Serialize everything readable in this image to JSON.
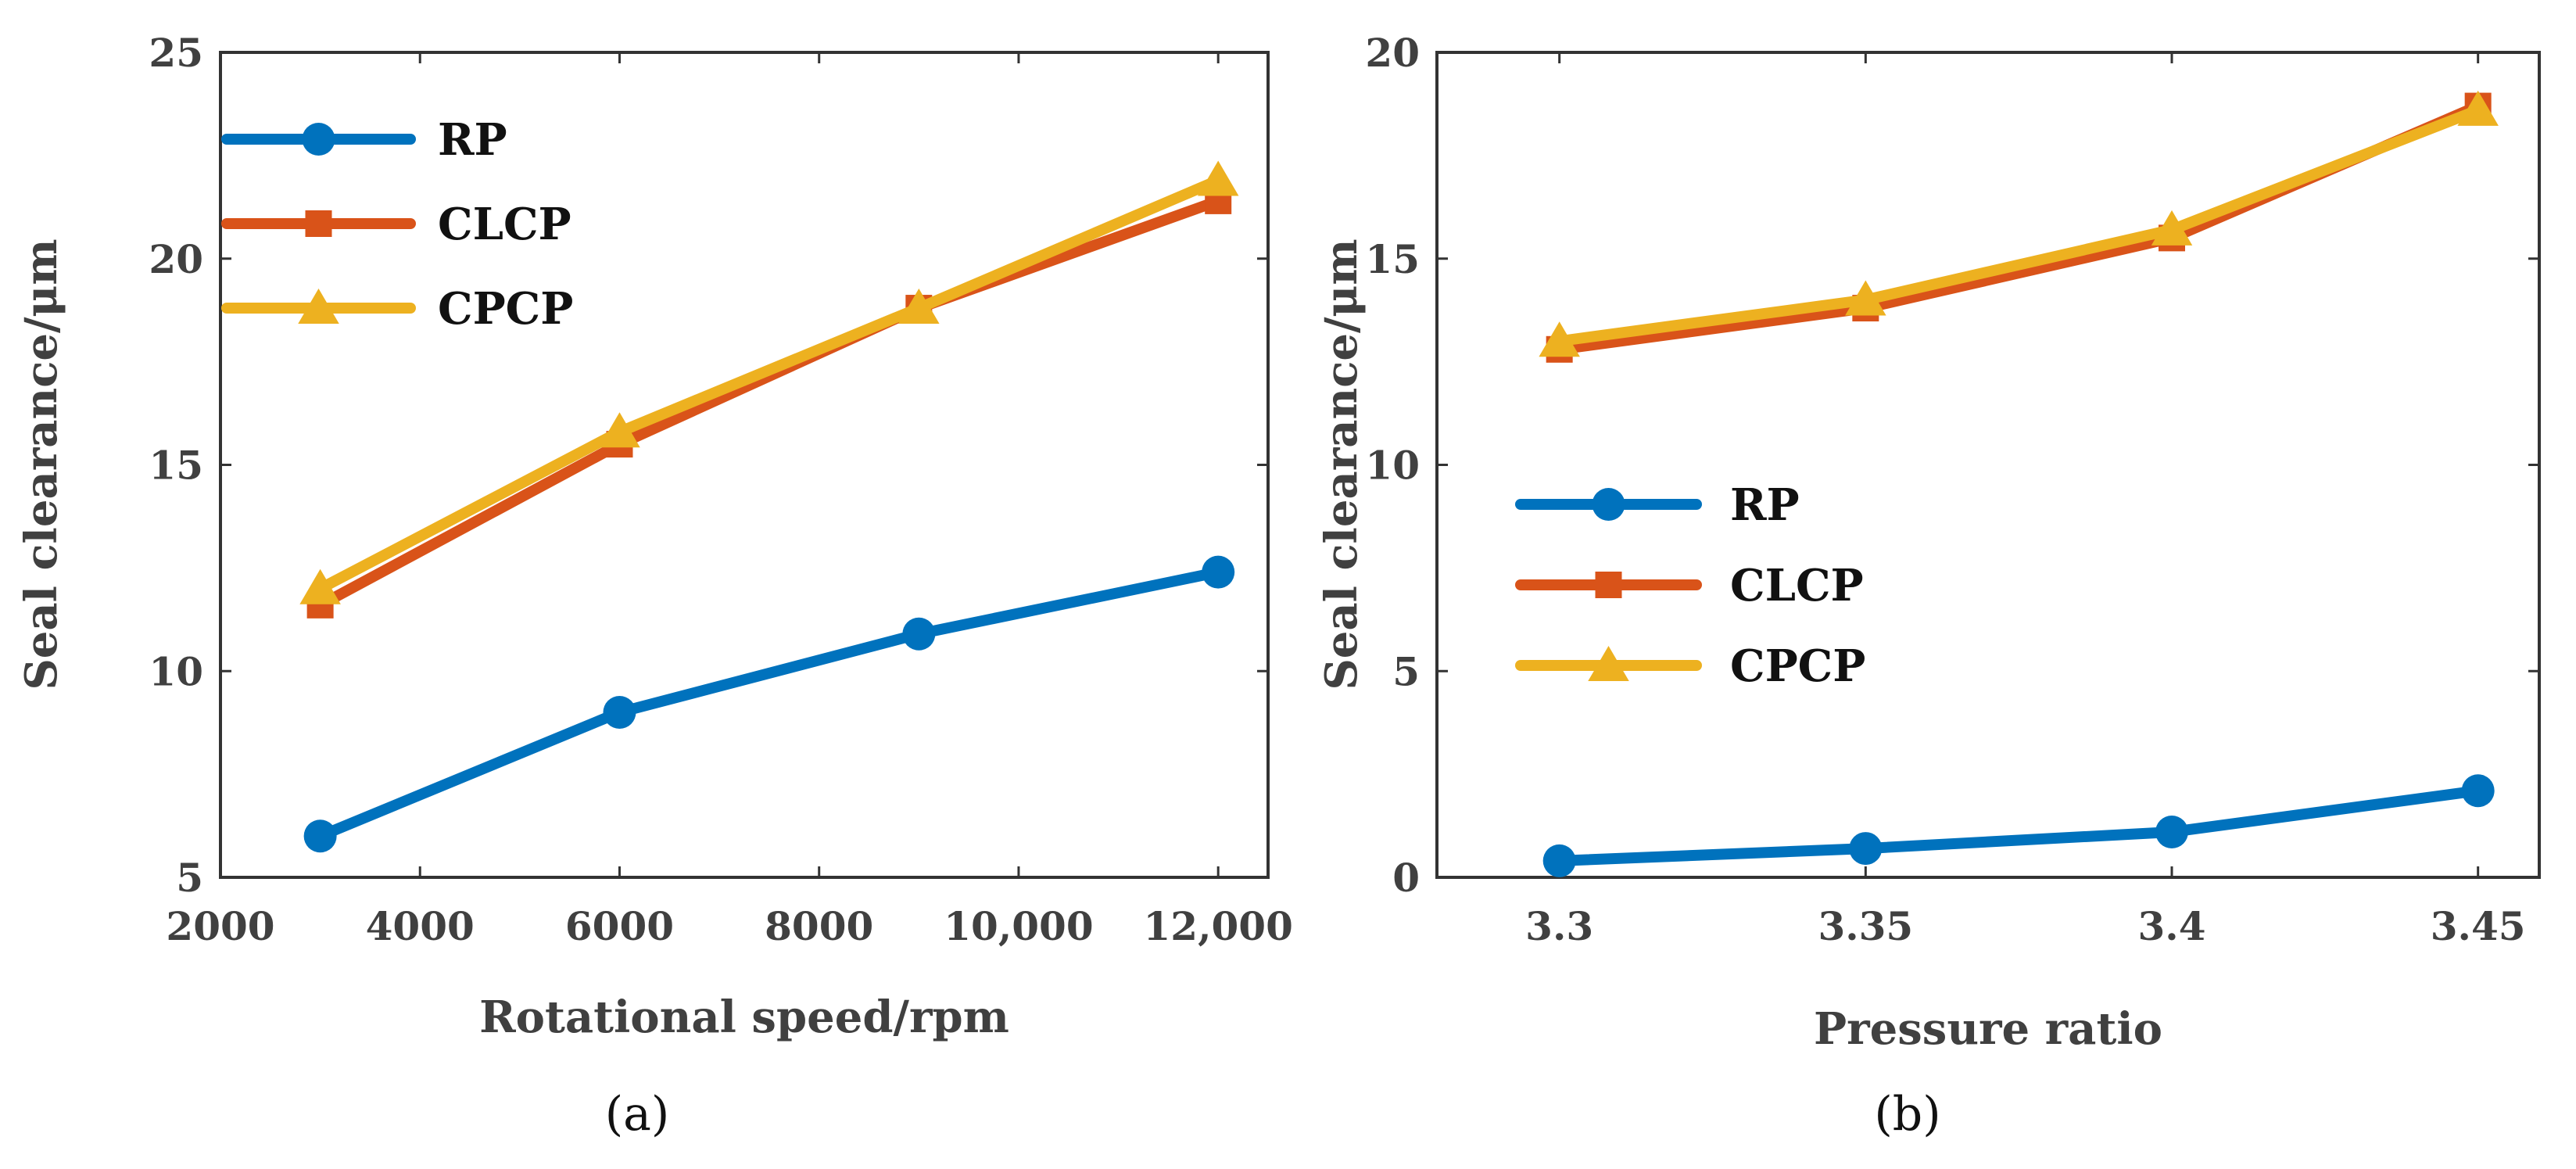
{
  "chart_data": [
    {
      "type": "line",
      "caption": "(a)",
      "xlabel": "Rotational speed/rpm",
      "ylabel": "Seal clearance/μm",
      "xlim": [
        2000,
        12500
      ],
      "ylim": [
        5,
        25
      ],
      "xticks": [
        2000,
        4000,
        6000,
        8000,
        10000,
        12000
      ],
      "xtick_labels": [
        "2000",
        "4000",
        "6000",
        "8000",
        "10,000",
        "12,000"
      ],
      "yticks": [
        5,
        10,
        15,
        20,
        25
      ],
      "ytick_labels": [
        "5",
        "10",
        "15",
        "20",
        "25"
      ],
      "grid": false,
      "legend_position": "top-left",
      "x": [
        3000,
        6000,
        9000,
        12000
      ],
      "series": [
        {
          "name": "RP",
          "color": "#0072BD",
          "marker": "circle",
          "values": [
            6.0,
            9.0,
            10.9,
            12.4
          ]
        },
        {
          "name": "CLCP",
          "color": "#D95319",
          "marker": "square",
          "values": [
            11.6,
            15.5,
            18.8,
            21.4
          ]
        },
        {
          "name": "CPCP",
          "color": "#EDB120",
          "marker": "triangle",
          "values": [
            12.0,
            15.8,
            18.8,
            21.9
          ]
        }
      ]
    },
    {
      "type": "line",
      "caption": "(b)",
      "xlabel": "Pressure ratio",
      "ylabel": "Seal clearance/μm",
      "xlim": [
        3.28,
        3.46
      ],
      "ylim": [
        0,
        20
      ],
      "xticks": [
        3.3,
        3.35,
        3.4,
        3.45
      ],
      "xtick_labels": [
        "3.3",
        "3.35",
        "3.4",
        "3.45"
      ],
      "yticks": [
        0,
        5,
        10,
        15,
        20
      ],
      "ytick_labels": [
        "0",
        "5",
        "10",
        "15",
        "20"
      ],
      "grid": false,
      "legend_position": "center-left",
      "x": [
        3.3,
        3.35,
        3.4,
        3.45
      ],
      "series": [
        {
          "name": "RP",
          "color": "#0072BD",
          "marker": "circle",
          "values": [
            0.4,
            0.7,
            1.1,
            2.1
          ]
        },
        {
          "name": "CLCP",
          "color": "#D95319",
          "marker": "square",
          "values": [
            12.8,
            13.8,
            15.5,
            18.7
          ]
        },
        {
          "name": "CPCP",
          "color": "#EDB120",
          "marker": "triangle",
          "values": [
            13.0,
            14.0,
            15.7,
            18.6
          ]
        }
      ]
    }
  ]
}
